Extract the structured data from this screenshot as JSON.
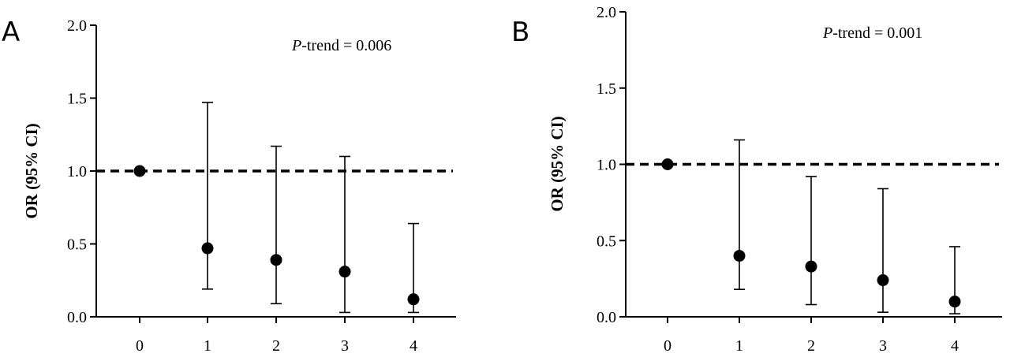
{
  "chart_data": [
    {
      "type": "scatter",
      "panel_label": "A",
      "title": "",
      "xlabel": "",
      "ylabel": "OR (95% CI)",
      "categories": [
        "0",
        "1",
        "2",
        "3",
        "4"
      ],
      "y_ticks": [
        "0.0",
        "0.5",
        "1.0",
        "1.5",
        "2.0"
      ],
      "ylim": [
        0,
        2.0
      ],
      "reference_line": 1.0,
      "annotation": {
        "italic": "P",
        "text": "-trend = 0.006"
      },
      "grid": false,
      "series": [
        {
          "values": [
            1.0,
            0.47,
            0.39,
            0.31,
            0.12
          ],
          "ci_lower": [
            null,
            0.19,
            0.09,
            0.03,
            0.03
          ],
          "ci_upper": [
            null,
            1.47,
            1.17,
            1.1,
            0.64
          ]
        }
      ]
    },
    {
      "type": "scatter",
      "panel_label": "B",
      "title": "",
      "xlabel": "",
      "ylabel": "OR (95% CI)",
      "categories": [
        "0",
        "1",
        "2",
        "3",
        "4"
      ],
      "y_ticks": [
        "0.0",
        "0.5",
        "1.0",
        "1.5",
        "2.0"
      ],
      "ylim": [
        0,
        2.0
      ],
      "reference_line": 1.0,
      "annotation": {
        "italic": "P",
        "text": "-trend = 0.001"
      },
      "grid": false,
      "series": [
        {
          "values": [
            1.0,
            0.4,
            0.33,
            0.24,
            0.1
          ],
          "ci_lower": [
            null,
            0.18,
            0.08,
            0.03,
            0.02
          ],
          "ci_upper": [
            null,
            1.16,
            0.92,
            0.84,
            0.46
          ]
        }
      ]
    }
  ]
}
